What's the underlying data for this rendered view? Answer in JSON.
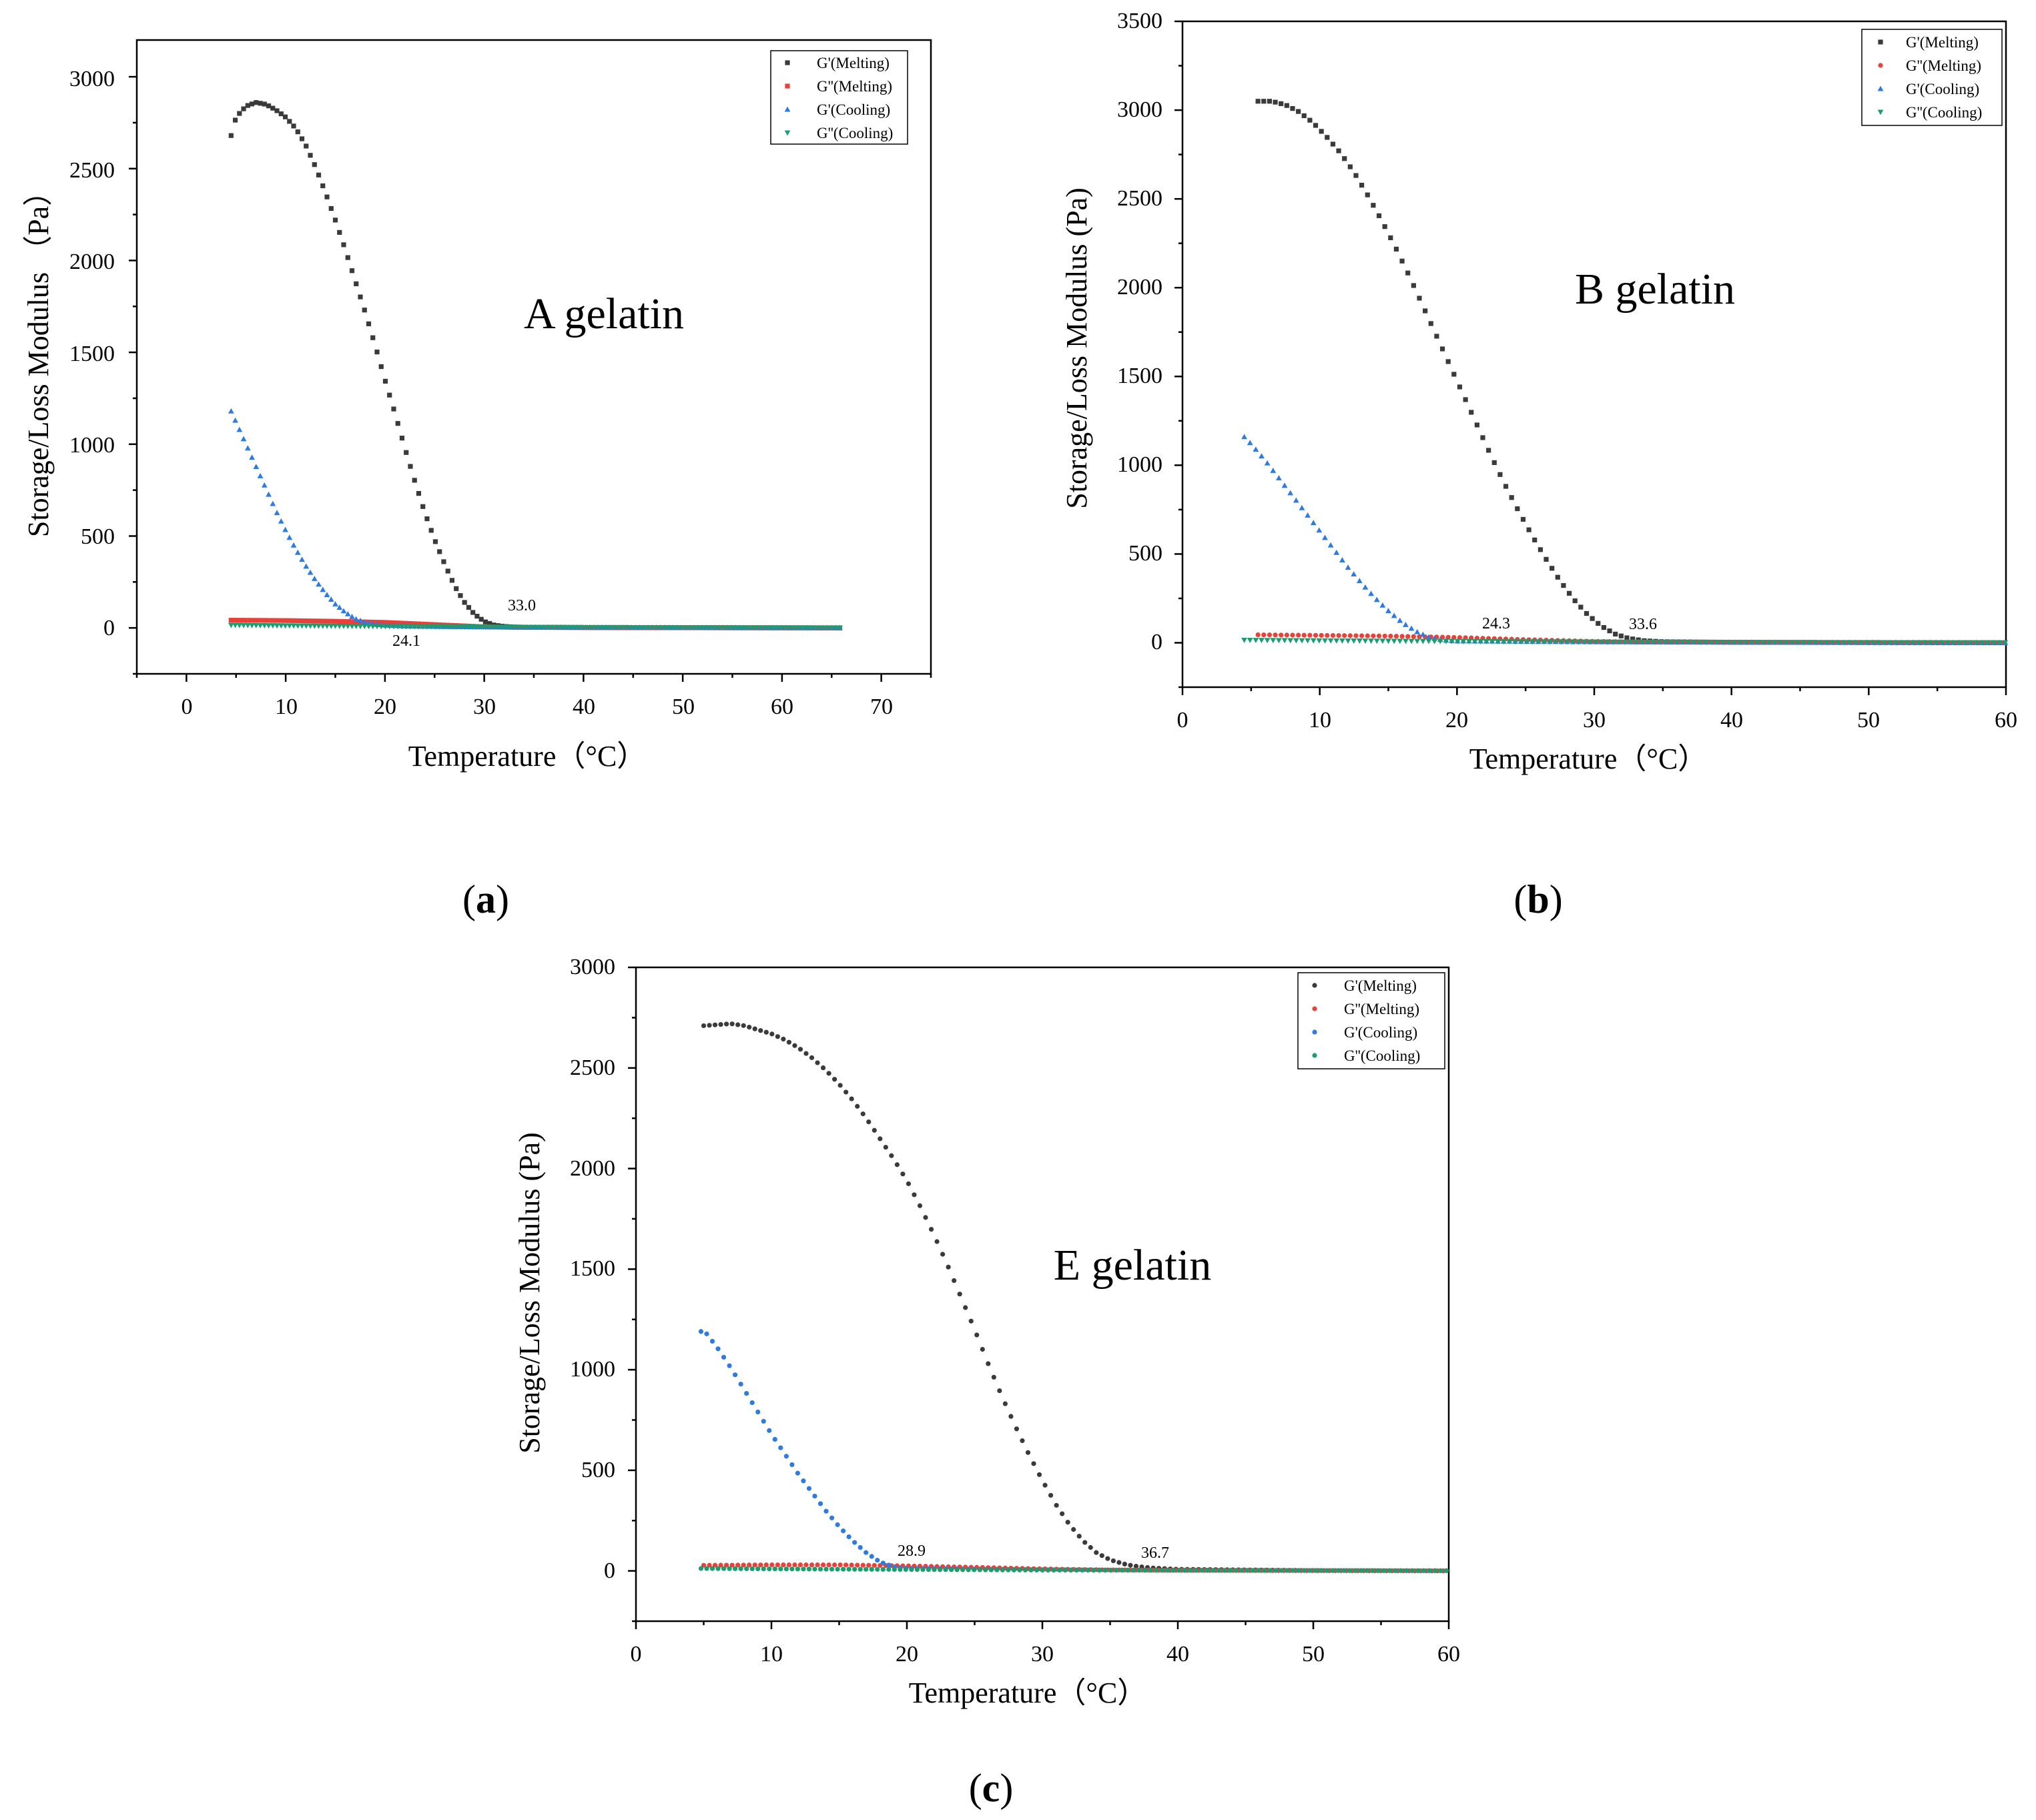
{
  "chart_data": [
    {
      "type": "scatter",
      "title": "A gelatin",
      "xlabel": "Temperature（°C）",
      "ylabel": "Storage/Loss Modulus （Pa）",
      "xlim": [
        -5,
        75
      ],
      "ylim": [
        -250,
        3200
      ],
      "xticks": [
        0,
        10,
        20,
        30,
        40,
        50,
        60,
        70
      ],
      "yticks": [
        0,
        500,
        1000,
        1500,
        2000,
        2500,
        3000
      ],
      "x_range_data": [
        4.5,
        66
      ],
      "legend": "top-right",
      "panel_label": [
        "(",
        "a",
        ")"
      ],
      "annotations": [
        {
          "text": "33.0",
          "x": 33.0,
          "y": 110
        },
        {
          "text": "24.1",
          "x": 22.5,
          "y": -85
        }
      ],
      "series": [
        {
          "name": "G'(Melting)",
          "color": "#3a3a3a",
          "marker": "square",
          "points": [
            [
              4.5,
              2680
            ],
            [
              5,
              2780
            ],
            [
              6,
              2840
            ],
            [
              7,
              2860
            ],
            [
              8,
              2850
            ],
            [
              9,
              2820
            ],
            [
              10,
              2780
            ],
            [
              11,
              2720
            ],
            [
              12,
              2630
            ],
            [
              13,
              2510
            ],
            [
              14,
              2370
            ],
            [
              15,
              2220
            ],
            [
              16,
              2060
            ],
            [
              17,
              1890
            ],
            [
              18,
              1720
            ],
            [
              19,
              1540
            ],
            [
              20,
              1350
            ],
            [
              21,
              1170
            ],
            [
              22,
              980
            ],
            [
              23,
              800
            ],
            [
              24,
              630
            ],
            [
              25,
              480
            ],
            [
              26,
              350
            ],
            [
              27,
              230
            ],
            [
              28,
              140
            ],
            [
              29,
              75
            ],
            [
              30,
              35
            ],
            [
              31,
              15
            ],
            [
              32,
              8
            ],
            [
              33,
              5
            ],
            [
              35,
              3
            ],
            [
              40,
              2
            ],
            [
              50,
              1
            ],
            [
              66,
              0
            ]
          ]
        },
        {
          "name": "G''(Melting)",
          "color": "#e8413a",
          "marker": "square",
          "points": [
            [
              4.5,
              42
            ],
            [
              10,
              40
            ],
            [
              15,
              36
            ],
            [
              20,
              30
            ],
            [
              25,
              18
            ],
            [
              30,
              6
            ],
            [
              33,
              3
            ],
            [
              40,
              2
            ],
            [
              50,
              1
            ],
            [
              66,
              0
            ]
          ]
        },
        {
          "name": "G'(Cooling)",
          "color": "#2d7be0",
          "marker": "triangle-up",
          "points": [
            [
              4.5,
              1180
            ],
            [
              5,
              1120
            ],
            [
              6,
              1000
            ],
            [
              7,
              880
            ],
            [
              8,
              760
            ],
            [
              9,
              640
            ],
            [
              10,
              530
            ],
            [
              11,
              430
            ],
            [
              12,
              340
            ],
            [
              13,
              260
            ],
            [
              14,
              190
            ],
            [
              15,
              130
            ],
            [
              16,
              85
            ],
            [
              17,
              50
            ],
            [
              18,
              30
            ],
            [
              19,
              20
            ],
            [
              20,
              15
            ],
            [
              22,
              10
            ],
            [
              24.1,
              8
            ],
            [
              30,
              5
            ],
            [
              40,
              3
            ],
            [
              50,
              2
            ],
            [
              66,
              1
            ]
          ]
        },
        {
          "name": "G''(Cooling)",
          "color": "#1a9e6e",
          "marker": "triangle-down",
          "points": [
            [
              4.5,
              15
            ],
            [
              10,
              12
            ],
            [
              20,
              8
            ],
            [
              30,
              5
            ],
            [
              40,
              3
            ],
            [
              50,
              2
            ],
            [
              66,
              1
            ]
          ]
        }
      ]
    },
    {
      "type": "scatter",
      "title": "B gelatin",
      "xlabel": "Temperature（°C）",
      "ylabel": "Storage/Loss Modulus (Pa)",
      "xlim": [
        0,
        60
      ],
      "ylim": [
        -250,
        3500
      ],
      "xticks": [
        0,
        10,
        20,
        30,
        40,
        50,
        60
      ],
      "yticks": [
        0,
        500,
        1000,
        1500,
        2000,
        2500,
        3000,
        3500
      ],
      "x_range_data": [
        4.5,
        60
      ],
      "legend": "top-right",
      "panel_label": [
        "(",
        "b",
        ")"
      ],
      "annotations": [
        {
          "text": "24.3",
          "x": 24.3,
          "y": 95
        },
        {
          "text": "33.6",
          "x": 35.2,
          "y": 90
        }
      ],
      "series": [
        {
          "name": "G'(Melting)",
          "color": "#3a3a3a",
          "marker": "square",
          "points": [
            [
              5.5,
              3050
            ],
            [
              6.5,
              3050
            ],
            [
              7.5,
              3030
            ],
            [
              8.5,
              2990
            ],
            [
              9.5,
              2930
            ],
            [
              10.5,
              2850
            ],
            [
              11.5,
              2760
            ],
            [
              12.5,
              2650
            ],
            [
              13.5,
              2520
            ],
            [
              14.5,
              2380
            ],
            [
              15.5,
              2230
            ],
            [
              16.5,
              2070
            ],
            [
              17.5,
              1900
            ],
            [
              18.5,
              1730
            ],
            [
              19.5,
              1560
            ],
            [
              20.5,
              1390
            ],
            [
              21.5,
              1220
            ],
            [
              22.5,
              1050
            ],
            [
              23.5,
              890
            ],
            [
              24.5,
              740
            ],
            [
              25.5,
              600
            ],
            [
              26.5,
              470
            ],
            [
              27.5,
              350
            ],
            [
              28.5,
              245
            ],
            [
              29.5,
              160
            ],
            [
              30.5,
              95
            ],
            [
              31.5,
              50
            ],
            [
              32.5,
              25
            ],
            [
              33.6,
              12
            ],
            [
              35,
              6
            ],
            [
              40,
              3
            ],
            [
              50,
              1
            ],
            [
              60,
              0
            ]
          ]
        },
        {
          "name": "G''(Melting)",
          "color": "#e8413a",
          "marker": "circle",
          "points": [
            [
              5.5,
              45
            ],
            [
              10,
              42
            ],
            [
              15,
              38
            ],
            [
              20,
              30
            ],
            [
              25,
              18
            ],
            [
              30,
              8
            ],
            [
              35,
              3
            ],
            [
              40,
              2
            ],
            [
              50,
              1
            ],
            [
              60,
              0
            ]
          ]
        },
        {
          "name": "G'(Cooling)",
          "color": "#2d7be0",
          "marker": "triangle-up",
          "points": [
            [
              4.5,
              1160
            ],
            [
              5,
              1120
            ],
            [
              6,
              1030
            ],
            [
              7,
              930
            ],
            [
              8,
              830
            ],
            [
              9,
              730
            ],
            [
              10,
              630
            ],
            [
              11,
              530
            ],
            [
              12,
              430
            ],
            [
              13,
              340
            ],
            [
              14,
              255
            ],
            [
              15,
              180
            ],
            [
              16,
              115
            ],
            [
              17,
              65
            ],
            [
              18,
              30
            ],
            [
              19,
              15
            ],
            [
              20,
              10
            ],
            [
              24.3,
              8
            ],
            [
              30,
              5
            ],
            [
              40,
              3
            ],
            [
              50,
              2
            ],
            [
              60,
              1
            ]
          ]
        },
        {
          "name": "G''(Cooling)",
          "color": "#1a9e6e",
          "marker": "triangle-down",
          "points": [
            [
              4.5,
              15
            ],
            [
              10,
              12
            ],
            [
              20,
              8
            ],
            [
              30,
              5
            ],
            [
              40,
              3
            ],
            [
              50,
              2
            ],
            [
              60,
              1
            ]
          ]
        }
      ]
    },
    {
      "type": "scatter",
      "title": "E gelatin",
      "xlabel": "Temperature（°C）",
      "ylabel": "Storage/Loss Modulus (Pa)",
      "xlim": [
        0,
        60
      ],
      "ylim": [
        -250,
        3000
      ],
      "xticks": [
        0,
        10,
        20,
        30,
        40,
        50,
        60
      ],
      "yticks": [
        0,
        500,
        1000,
        1500,
        2000,
        2500,
        3000
      ],
      "x_range_data": [
        5,
        60
      ],
      "legend": "top-right",
      "panel_label": [
        "(",
        "c",
        ")"
      ],
      "annotations": [
        {
          "text": "28.9",
          "x": 20.3,
          "y": 60
        },
        {
          "text": "36.7",
          "x": 38.3,
          "y": 45
        }
      ],
      "series": [
        {
          "name": "G'(Melting)",
          "color": "#3a3a3a",
          "marker": "circle",
          "points": [
            [
              5,
              2710
            ],
            [
              6,
              2715
            ],
            [
              7,
              2720
            ],
            [
              8,
              2710
            ],
            [
              9,
              2690
            ],
            [
              10,
              2670
            ],
            [
              11,
              2640
            ],
            [
              12,
              2600
            ],
            [
              13,
              2550
            ],
            [
              14,
              2490
            ],
            [
              15,
              2420
            ],
            [
              16,
              2340
            ],
            [
              17,
              2250
            ],
            [
              18,
              2150
            ],
            [
              19,
              2050
            ],
            [
              20,
              1940
            ],
            [
              21,
              1810
            ],
            [
              22,
              1670
            ],
            [
              23,
              1520
            ],
            [
              24,
              1360
            ],
            [
              25,
              1200
            ],
            [
              26,
              1030
            ],
            [
              27,
              870
            ],
            [
              28,
              720
            ],
            [
              29,
              580
            ],
            [
              30,
              450
            ],
            [
              31,
              330
            ],
            [
              32,
              230
            ],
            [
              33,
              150
            ],
            [
              34,
              90
            ],
            [
              35,
              55
            ],
            [
              36,
              35
            ],
            [
              36.7,
              25
            ],
            [
              38,
              15
            ],
            [
              40,
              8
            ],
            [
              50,
              2
            ],
            [
              60,
              0
            ]
          ]
        },
        {
          "name": "G''(Melting)",
          "color": "#e8413a",
          "marker": "circle",
          "points": [
            [
              5,
              28
            ],
            [
              10,
              30
            ],
            [
              15,
              30
            ],
            [
              20,
              25
            ],
            [
              25,
              18
            ],
            [
              30,
              10
            ],
            [
              35,
              5
            ],
            [
              40,
              3
            ],
            [
              50,
              1
            ],
            [
              60,
              0
            ]
          ]
        },
        {
          "name": "G'(Cooling)",
          "color": "#2d7be0",
          "marker": "circle",
          "points": [
            [
              4.8,
              1190
            ],
            [
              5.2,
              1180
            ],
            [
              6,
              1110
            ],
            [
              7,
              1010
            ],
            [
              8,
              900
            ],
            [
              9,
              790
            ],
            [
              10,
              680
            ],
            [
              11,
              580
            ],
            [
              12,
              480
            ],
            [
              13,
              390
            ],
            [
              14,
              300
            ],
            [
              15,
              220
            ],
            [
              16,
              150
            ],
            [
              17,
              90
            ],
            [
              18,
              45
            ],
            [
              19,
              20
            ],
            [
              20,
              12
            ],
            [
              28.9,
              6
            ],
            [
              40,
              3
            ],
            [
              50,
              2
            ],
            [
              60,
              1
            ]
          ]
        },
        {
          "name": "G''(Cooling)",
          "color": "#1a9e6e",
          "marker": "circle",
          "points": [
            [
              4.8,
              12
            ],
            [
              10,
              10
            ],
            [
              20,
              7
            ],
            [
              30,
              4
            ],
            [
              40,
              3
            ],
            [
              50,
              2
            ],
            [
              60,
              1
            ]
          ]
        }
      ]
    }
  ]
}
